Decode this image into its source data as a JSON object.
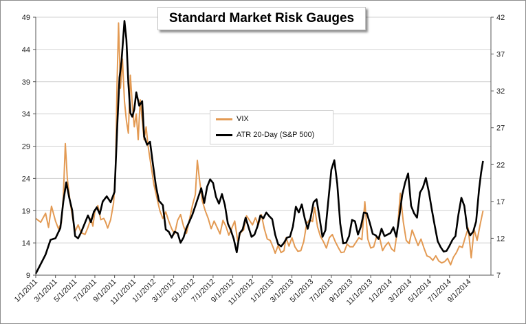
{
  "chart_data": {
    "type": "line",
    "title": "Standard Market Risk Gauges",
    "left_axis": {
      "min": 9,
      "max": 49,
      "ticks": [
        9,
        14,
        19,
        24,
        29,
        34,
        39,
        44,
        49
      ]
    },
    "right_axis": {
      "min": 7,
      "max": 42,
      "ticks": [
        7,
        12,
        17,
        22,
        27,
        32,
        37,
        42
      ]
    },
    "x_labels": [
      "1/1/2011",
      "3/1/2011",
      "5/1/2011",
      "7/1/2011",
      "9/1/2011",
      "11/1/2011",
      "1/1/2012",
      "3/1/2012",
      "5/1/2012",
      "7/1/2012",
      "9/1/2012",
      "11/1/2012",
      "1/1/2013",
      "3/1/2013",
      "5/1/2013",
      "7/1/2013",
      "9/1/2013",
      "11/1/2013",
      "1/1/2014",
      "3/1/2014",
      "5/1/2014",
      "7/1/2014",
      "9/1/2014"
    ],
    "x_range_months": [
      0,
      46.2
    ],
    "grid": "horizontal",
    "series": [
      {
        "name": "VIX",
        "axis": "left",
        "color": "#e39a53",
        "points": [
          [
            0,
            17.8
          ],
          [
            0.5,
            17.2
          ],
          [
            1,
            18.6
          ],
          [
            1.3,
            16.4
          ],
          [
            1.6,
            19.7
          ],
          [
            2,
            17.4
          ],
          [
            2.3,
            16.2
          ],
          [
            2.6,
            17.1
          ],
          [
            2.8,
            21.2
          ],
          [
            3,
            29.4
          ],
          [
            3.2,
            24
          ],
          [
            3.5,
            20.2
          ],
          [
            3.8,
            17.3
          ],
          [
            4,
            15.8
          ],
          [
            4.3,
            16.8
          ],
          [
            4.6,
            15.6
          ],
          [
            5,
            15.3
          ],
          [
            5.3,
            16.4
          ],
          [
            5.6,
            17.8
          ],
          [
            5.8,
            16.6
          ],
          [
            6,
            18.9
          ],
          [
            6.3,
            19.8
          ],
          [
            6.6,
            17.6
          ],
          [
            6.9,
            17.8
          ],
          [
            7.1,
            17.2
          ],
          [
            7.3,
            16.3
          ],
          [
            7.6,
            17.6
          ],
          [
            7.9,
            20.2
          ],
          [
            8.1,
            25.5
          ],
          [
            8.25,
            38.5
          ],
          [
            8.4,
            48.1
          ],
          [
            8.6,
            38
          ],
          [
            8.8,
            42.5
          ],
          [
            9,
            36
          ],
          [
            9.2,
            33
          ],
          [
            9.4,
            31
          ],
          [
            9.6,
            40
          ],
          [
            9.8,
            35.5
          ],
          [
            10,
            32
          ],
          [
            10.2,
            34
          ],
          [
            10.4,
            30
          ],
          [
            10.6,
            36.2
          ],
          [
            10.8,
            33
          ],
          [
            11,
            30
          ],
          [
            11.2,
            32
          ],
          [
            11.4,
            29
          ],
          [
            11.6,
            27
          ],
          [
            11.8,
            25
          ],
          [
            12,
            23
          ],
          [
            12.3,
            21
          ],
          [
            12.6,
            19
          ],
          [
            12.9,
            17.8
          ],
          [
            13.2,
            18.8
          ],
          [
            13.5,
            17.4
          ],
          [
            13.8,
            16.2
          ],
          [
            14.1,
            15.4
          ],
          [
            14.4,
            17.5
          ],
          [
            14.7,
            18.4
          ],
          [
            15,
            16.6
          ],
          [
            15.3,
            15.5
          ],
          [
            15.6,
            17.6
          ],
          [
            15.9,
            19.8
          ],
          [
            16.2,
            21.5
          ],
          [
            16.4,
            26.8
          ],
          [
            16.6,
            24
          ],
          [
            16.9,
            20.5
          ],
          [
            17.2,
            19
          ],
          [
            17.5,
            17.8
          ],
          [
            17.8,
            16.2
          ],
          [
            18.1,
            17.4
          ],
          [
            18.4,
            16.4
          ],
          [
            18.7,
            15.4
          ],
          [
            19,
            17.5
          ],
          [
            19.3,
            16.6
          ],
          [
            19.6,
            15.2
          ],
          [
            19.9,
            16.3
          ],
          [
            20.2,
            17.4
          ],
          [
            20.5,
            14.3
          ],
          [
            20.8,
            15.6
          ],
          [
            21.1,
            16
          ],
          [
            21.4,
            18.2
          ],
          [
            21.7,
            17.5
          ],
          [
            22,
            16.8
          ],
          [
            22.3,
            17.9
          ],
          [
            22.6,
            16.8
          ],
          [
            22.9,
            18.4
          ],
          [
            23.2,
            16.2
          ],
          [
            23.5,
            14.6
          ],
          [
            23.8,
            14.4
          ],
          [
            24.1,
            13.3
          ],
          [
            24.3,
            12.4
          ],
          [
            24.6,
            13.6
          ],
          [
            24.9,
            12.5
          ],
          [
            25.2,
            12.8
          ],
          [
            25.4,
            14.8
          ],
          [
            25.7,
            13.5
          ],
          [
            26,
            14.8
          ],
          [
            26.3,
            13.4
          ],
          [
            26.6,
            12.7
          ],
          [
            26.9,
            12.8
          ],
          [
            27.2,
            14.2
          ],
          [
            27.5,
            17
          ],
          [
            27.8,
            17.6
          ],
          [
            28.1,
            17.3
          ],
          [
            28.3,
            19.5
          ],
          [
            28.6,
            16.5
          ],
          [
            28.9,
            15
          ],
          [
            29.2,
            14.2
          ],
          [
            29.5,
            13.2
          ],
          [
            29.8,
            14.8
          ],
          [
            30.1,
            15.3
          ],
          [
            30.4,
            14.2
          ],
          [
            30.7,
            13.3
          ],
          [
            31,
            12.5
          ],
          [
            31.3,
            12.6
          ],
          [
            31.6,
            13.8
          ],
          [
            31.9,
            13.4
          ],
          [
            32.2,
            13.4
          ],
          [
            32.5,
            14.1
          ],
          [
            32.8,
            14.8
          ],
          [
            33.1,
            14.5
          ],
          [
            33.4,
            20.4
          ],
          [
            33.7,
            14.6
          ],
          [
            34,
            13.2
          ],
          [
            34.3,
            13.4
          ],
          [
            34.6,
            15
          ],
          [
            34.9,
            14.8
          ],
          [
            35.2,
            12.8
          ],
          [
            35.5,
            13.6
          ],
          [
            35.8,
            14.1
          ],
          [
            36.1,
            13.1
          ],
          [
            36.4,
            12.7
          ],
          [
            36.7,
            15.9
          ],
          [
            37,
            21.7
          ],
          [
            37.3,
            17.3
          ],
          [
            37.6,
            14.4
          ],
          [
            37.9,
            13.9
          ],
          [
            38.2,
            16
          ],
          [
            38.5,
            14.8
          ],
          [
            38.8,
            13.6
          ],
          [
            39.1,
            14.6
          ],
          [
            39.4,
            13.2
          ],
          [
            39.7,
            12
          ],
          [
            40,
            11.8
          ],
          [
            40.3,
            11.3
          ],
          [
            40.6,
            12
          ],
          [
            40.9,
            11.2
          ],
          [
            41.2,
            10.9
          ],
          [
            41.5,
            11.1
          ],
          [
            41.8,
            11.6
          ],
          [
            42.1,
            10.6
          ],
          [
            42.4,
            11.8
          ],
          [
            42.7,
            12.5
          ],
          [
            43,
            13.5
          ],
          [
            43.3,
            13.3
          ],
          [
            43.6,
            14.9
          ],
          [
            43.9,
            16.3
          ],
          [
            44.2,
            11.7
          ],
          [
            44.5,
            16.1
          ],
          [
            44.8,
            14.4
          ],
          [
            45.1,
            16.8
          ],
          [
            45.4,
            19
          ]
        ]
      },
      {
        "name": "ATR 20-Day (S&P 500)",
        "axis": "right",
        "color": "#000000",
        "points": [
          [
            0,
            7.2
          ],
          [
            0.5,
            8.5
          ],
          [
            1,
            9.8
          ],
          [
            1.5,
            11.8
          ],
          [
            2,
            12
          ],
          [
            2.5,
            13.4
          ],
          [
            2.8,
            17
          ],
          [
            3.1,
            19.6
          ],
          [
            3.4,
            17.5
          ],
          [
            3.7,
            15.8
          ],
          [
            4,
            12.3
          ],
          [
            4.3,
            12
          ],
          [
            4.6,
            12.8
          ],
          [
            5,
            14.1
          ],
          [
            5.3,
            15.1
          ],
          [
            5.6,
            14.2
          ],
          [
            5.9,
            15.6
          ],
          [
            6.2,
            16.2
          ],
          [
            6.5,
            15.3
          ],
          [
            6.8,
            17
          ],
          [
            7.2,
            17.7
          ],
          [
            7.6,
            16.9
          ],
          [
            8,
            18.3
          ],
          [
            8.3,
            28
          ],
          [
            8.5,
            33.8
          ],
          [
            8.7,
            36
          ],
          [
            9,
            41.5
          ],
          [
            9.2,
            39
          ],
          [
            9.4,
            33
          ],
          [
            9.6,
            29
          ],
          [
            9.8,
            28.5
          ],
          [
            10,
            29.5
          ],
          [
            10.2,
            31.8
          ],
          [
            10.5,
            30
          ],
          [
            10.8,
            30.6
          ],
          [
            11,
            25.8
          ],
          [
            11.3,
            24.7
          ],
          [
            11.6,
            25.1
          ],
          [
            11.9,
            22
          ],
          [
            12.2,
            19.1
          ],
          [
            12.5,
            17.1
          ],
          [
            12.9,
            16.5
          ],
          [
            13.2,
            13.2
          ],
          [
            13.5,
            12.9
          ],
          [
            13.8,
            12.1
          ],
          [
            14.1,
            12.9
          ],
          [
            14.4,
            12.7
          ],
          [
            14.7,
            11.4
          ],
          [
            15,
            12.1
          ],
          [
            15.3,
            13.4
          ],
          [
            15.6,
            14.3
          ],
          [
            15.9,
            15.2
          ],
          [
            16.2,
            16.4
          ],
          [
            16.5,
            17.6
          ],
          [
            16.8,
            18.8
          ],
          [
            17.1,
            16.8
          ],
          [
            17.4,
            19
          ],
          [
            17.7,
            20
          ],
          [
            18,
            19.5
          ],
          [
            18.3,
            17.6
          ],
          [
            18.6,
            16.7
          ],
          [
            18.9,
            18
          ],
          [
            19.2,
            16.5
          ],
          [
            19.5,
            14
          ],
          [
            19.8,
            13.1
          ],
          [
            20.1,
            11.9
          ],
          [
            20.4,
            10.1
          ],
          [
            20.7,
            12.7
          ],
          [
            21,
            13.2
          ],
          [
            21.3,
            14.8
          ],
          [
            21.6,
            13.5
          ],
          [
            21.9,
            12.2
          ],
          [
            22.2,
            12.5
          ],
          [
            22.5,
            13.6
          ],
          [
            22.8,
            15.1
          ],
          [
            23.1,
            14.7
          ],
          [
            23.4,
            15.5
          ],
          [
            23.7,
            15
          ],
          [
            24,
            14.6
          ],
          [
            24.3,
            12.5
          ],
          [
            24.6,
            11.2
          ],
          [
            24.9,
            10.9
          ],
          [
            25.2,
            11.4
          ],
          [
            25.5,
            12.1
          ],
          [
            25.8,
            12.2
          ],
          [
            26.1,
            13.6
          ],
          [
            26.4,
            16.3
          ],
          [
            26.7,
            15.5
          ],
          [
            27,
            16.6
          ],
          [
            27.3,
            14.7
          ],
          [
            27.6,
            13.3
          ],
          [
            27.9,
            14.8
          ],
          [
            28.2,
            16.9
          ],
          [
            28.5,
            17.3
          ],
          [
            28.8,
            14.8
          ],
          [
            29.1,
            12.2
          ],
          [
            29.4,
            13.1
          ],
          [
            29.7,
            17.2
          ],
          [
            30,
            21.3
          ],
          [
            30.3,
            22.6
          ],
          [
            30.6,
            19.4
          ],
          [
            30.9,
            14
          ],
          [
            31.2,
            11.3
          ],
          [
            31.5,
            11.4
          ],
          [
            31.8,
            12.3
          ],
          [
            32.1,
            14.5
          ],
          [
            32.4,
            14.3
          ],
          [
            32.7,
            12.5
          ],
          [
            33,
            13.6
          ],
          [
            33.3,
            15.5
          ],
          [
            33.6,
            15.4
          ],
          [
            33.9,
            14.1
          ],
          [
            34.2,
            12.6
          ],
          [
            34.5,
            12.4
          ],
          [
            34.8,
            11.9
          ],
          [
            35.1,
            13.3
          ],
          [
            35.4,
            12.3
          ],
          [
            35.7,
            12.5
          ],
          [
            36,
            12.7
          ],
          [
            36.3,
            13.5
          ],
          [
            36.6,
            12.2
          ],
          [
            36.9,
            14.9
          ],
          [
            37.2,
            17.9
          ],
          [
            37.5,
            19.6
          ],
          [
            37.8,
            20.8
          ],
          [
            38.1,
            16.4
          ],
          [
            38.4,
            15.4
          ],
          [
            38.7,
            14.8
          ],
          [
            39,
            18.2
          ],
          [
            39.3,
            18.9
          ],
          [
            39.6,
            20.2
          ],
          [
            39.9,
            18.3
          ],
          [
            40.2,
            15.9
          ],
          [
            40.5,
            13.7
          ],
          [
            40.8,
            11.6
          ],
          [
            41.1,
            10.8
          ],
          [
            41.4,
            10.2
          ],
          [
            41.7,
            10.3
          ],
          [
            42,
            11
          ],
          [
            42.3,
            11.8
          ],
          [
            42.6,
            12.3
          ],
          [
            42.9,
            15.2
          ],
          [
            43.2,
            17.5
          ],
          [
            43.5,
            16.4
          ],
          [
            43.8,
            13.3
          ],
          [
            44.1,
            12.4
          ],
          [
            44.4,
            12.9
          ],
          [
            44.7,
            14.3
          ],
          [
            45,
            18.7
          ],
          [
            45.2,
            20.9
          ],
          [
            45.4,
            22.5
          ]
        ]
      }
    ]
  }
}
